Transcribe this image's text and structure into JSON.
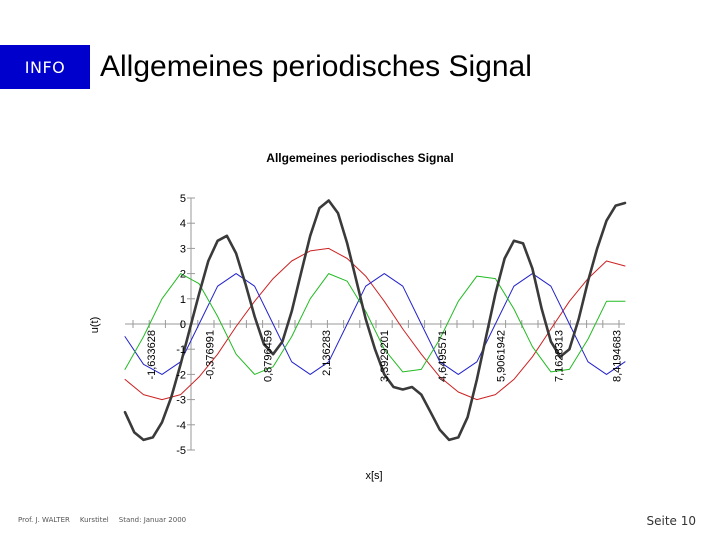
{
  "header": {
    "badge": "INFO",
    "title": "Allgemeines periodisches Signal"
  },
  "footer": {
    "author": "Prof. J. WALTER",
    "course": "Kurstitel",
    "date": "Stand: Januar 2000",
    "page": "Seite 10"
  },
  "colors": {
    "badge_bg": "#0000cc",
    "sum": "#3a3a3a",
    "red": "#cc2222",
    "blue": "#2222cc",
    "green": "#22bb22"
  },
  "chart_data": {
    "type": "line",
    "title": "Allgemeines periodisches Signal",
    "xlabel": "x[s]",
    "ylabel": "u(t)",
    "ylim": [
      -5,
      5
    ],
    "xlim": [
      -2.2,
      8.6
    ],
    "y_ticks": [
      "5",
      "4",
      "3",
      "2",
      "1",
      "0",
      "-1",
      "-2",
      "-3",
      "-4",
      "-5"
    ],
    "x_tick_labels": [
      {
        "value": -1.633628,
        "label": "-1,633628"
      },
      {
        "value": -0.376991,
        "label": "-0,376991"
      },
      {
        "value": 0.8796459,
        "label": "0,8796459"
      },
      {
        "value": 2.136283,
        "label": "2,136283"
      },
      {
        "value": 3.3929201,
        "label": "3,3929201"
      },
      {
        "value": 4.6495571,
        "label": "4,6495571"
      },
      {
        "value": 5.9061942,
        "label": "5,9061942"
      },
      {
        "value": 7.1628313,
        "label": "7,1628313"
      },
      {
        "value": 8.4194683,
        "label": "8,4194683"
      }
    ],
    "grid": false,
    "series": [
      {
        "color": "#cc2222",
        "width": 1.0,
        "x": [
          -2.2,
          -1.8,
          -1.4,
          -1.0,
          -0.6,
          -0.2,
          0.2,
          0.6,
          1.0,
          1.4,
          1.8,
          2.2,
          2.6,
          3.0,
          3.4,
          3.8,
          4.2,
          4.6,
          5.0,
          5.4,
          5.8,
          6.2,
          6.6,
          7.0,
          7.4,
          7.8,
          8.2,
          8.6
        ],
        "y": [
          -2.2,
          -2.8,
          -3.0,
          -2.8,
          -2.1,
          -1.2,
          -0.1,
          0.9,
          1.8,
          2.5,
          2.9,
          3.0,
          2.6,
          1.9,
          0.9,
          -0.2,
          -1.2,
          -2.1,
          -2.7,
          -3.0,
          -2.8,
          -2.2,
          -1.3,
          -0.2,
          0.9,
          1.8,
          2.5,
          2.3
        ]
      },
      {
        "color": "#2222cc",
        "width": 1.0,
        "x": [
          -2.2,
          -1.8,
          -1.4,
          -1.0,
          -0.6,
          -0.2,
          0.2,
          0.6,
          1.0,
          1.4,
          1.8,
          2.2,
          2.6,
          3.0,
          3.4,
          3.8,
          4.2,
          4.6,
          5.0,
          5.4,
          5.8,
          6.2,
          6.6,
          7.0,
          7.4,
          7.8,
          8.2,
          8.6
        ],
        "y": [
          -0.5,
          -1.6,
          -2.0,
          -1.5,
          0.0,
          1.5,
          2.0,
          1.5,
          0.0,
          -1.5,
          -2.0,
          -1.5,
          0.0,
          1.5,
          2.0,
          1.5,
          0.0,
          -1.5,
          -2.0,
          -1.5,
          0.0,
          1.5,
          2.0,
          1.5,
          0.0,
          -1.5,
          -2.0,
          -1.5
        ]
      },
      {
        "color": "#22bb22",
        "width": 1.0,
        "x": [
          -2.2,
          -1.8,
          -1.4,
          -1.0,
          -0.6,
          -0.2,
          0.2,
          0.6,
          1.0,
          1.4,
          1.8,
          2.2,
          2.6,
          3.0,
          3.4,
          3.8,
          4.2,
          4.6,
          5.0,
          5.4,
          5.8,
          6.2,
          6.6,
          7.0,
          7.4,
          7.8,
          8.2,
          8.6
        ],
        "y": [
          -1.8,
          -0.5,
          1.0,
          2.0,
          1.6,
          0.3,
          -1.2,
          -2.0,
          -1.7,
          -0.5,
          1.0,
          2.0,
          1.7,
          0.5,
          -1.0,
          -1.9,
          -1.8,
          -0.6,
          0.9,
          1.9,
          1.8,
          0.6,
          -0.9,
          -1.9,
          -1.8,
          -0.6,
          0.9,
          0.9
        ]
      },
      {
        "color": "#3a3a3a",
        "width": 2.6,
        "x": [
          -2.2,
          -2.0,
          -1.8,
          -1.6,
          -1.4,
          -1.2,
          -1.0,
          -0.8,
          -0.6,
          -0.4,
          -0.2,
          0.0,
          0.2,
          0.4,
          0.6,
          0.8,
          1.0,
          1.2,
          1.4,
          1.6,
          1.8,
          2.0,
          2.2,
          2.4,
          2.6,
          2.8,
          3.0,
          3.2,
          3.4,
          3.6,
          3.8,
          4.0,
          4.2,
          4.4,
          4.6,
          4.8,
          5.0,
          5.2,
          5.4,
          5.6,
          5.8,
          6.0,
          6.2,
          6.4,
          6.6,
          6.8,
          7.0,
          7.2,
          7.4,
          7.6,
          7.8,
          8.0,
          8.2,
          8.4,
          8.6
        ],
        "y": [
          -3.5,
          -4.3,
          -4.6,
          -4.5,
          -3.9,
          -2.9,
          -1.6,
          -0.2,
          1.2,
          2.5,
          3.3,
          3.5,
          2.8,
          1.6,
          0.3,
          -0.8,
          -1.2,
          -0.7,
          0.5,
          2.0,
          3.5,
          4.6,
          4.9,
          4.4,
          3.2,
          1.7,
          0.2,
          -1.0,
          -2.0,
          -2.5,
          -2.6,
          -2.5,
          -2.8,
          -3.5,
          -4.2,
          -4.6,
          -4.5,
          -3.7,
          -2.2,
          -0.5,
          1.2,
          2.6,
          3.3,
          3.2,
          2.2,
          0.6,
          -0.7,
          -1.3,
          -1.0,
          0.2,
          1.7,
          3.0,
          4.1,
          4.7,
          4.8
        ]
      }
    ]
  }
}
